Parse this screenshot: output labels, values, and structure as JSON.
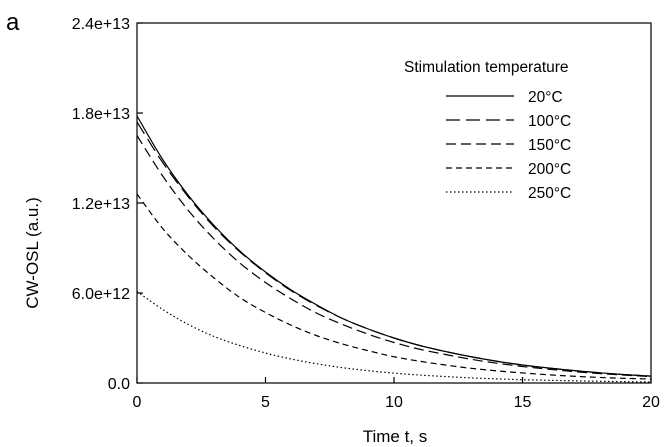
{
  "chart_data": {
    "type": "line",
    "panel_label": "a",
    "xlabel": "Time t, s",
    "ylabel": "CW-OSL (a.u.)",
    "xlim": [
      0,
      20
    ],
    "ylim": [
      0,
      24000000000000.0
    ],
    "x_ticks": [
      0,
      5,
      10,
      15,
      20
    ],
    "x_tick_labels": [
      "0",
      "5",
      "10",
      "15",
      "20"
    ],
    "y_ticks": [
      0,
      6000000000000.0,
      12000000000000.0,
      18000000000000.0,
      24000000000000.0
    ],
    "y_tick_labels": [
      "0.0",
      "6.0e+12",
      "1.2e+13",
      "1.8e+13",
      "2.4e+13"
    ],
    "grid": false,
    "legend": {
      "title": "Stimulation temperature",
      "position": "top-right"
    },
    "x": [
      0,
      1,
      2,
      3,
      4,
      5,
      6,
      7,
      8,
      9,
      10,
      11,
      12,
      13,
      14,
      15,
      16,
      17,
      18,
      19,
      20
    ],
    "series": [
      {
        "name": "20°C",
        "dash": "solid",
        "values": [
          17800000000000.0,
          14900000000000.0,
          12500000000000.0,
          10500000000000.0,
          8800000000000.0,
          7400000000000.0,
          6200000000000.0,
          5200000000000.0,
          4300000000000.0,
          3600000000000.0,
          3000000000000.0,
          2500000000000.0,
          2100000000000.0,
          1750000000000.0,
          1450000000000.0,
          1200000000000.0,
          1000000000000.0,
          830000000000.0,
          680000000000.0,
          560000000000.0,
          460000000000.0
        ]
      },
      {
        "name": "100°C",
        "dash": "long",
        "values": [
          17400000000000.0,
          14700000000000.0,
          12400000000000.0,
          10400000000000.0,
          8750000000000.0,
          7350000000000.0,
          6150000000000.0,
          5150000000000.0,
          4300000000000.0,
          3600000000000.0,
          3000000000000.0,
          2500000000000.0,
          2100000000000.0,
          1750000000000.0,
          1450000000000.0,
          1200000000000.0,
          1000000000000.0,
          830000000000.0,
          680000000000.0,
          560000000000.0,
          460000000000.0
        ]
      },
      {
        "name": "150°C",
        "dash": "medium",
        "values": [
          16500000000000.0,
          13800000000000.0,
          11500000000000.0,
          9600000000000.0,
          8000000000000.0,
          6700000000000.0,
          5600000000000.0,
          4650000000000.0,
          3900000000000.0,
          3250000000000.0,
          2700000000000.0,
          2250000000000.0,
          1900000000000.0,
          1580000000000.0,
          1320000000000.0,
          1100000000000.0,
          920000000000.0,
          760000000000.0,
          630000000000.0,
          520000000000.0,
          430000000000.0
        ]
      },
      {
        "name": "200°C",
        "dash": "short",
        "values": [
          12600000000000.0,
          10300000000000.0,
          8500000000000.0,
          7000000000000.0,
          5700000000000.0,
          4700000000000.0,
          3850000000000.0,
          3150000000000.0,
          2600000000000.0,
          2150000000000.0,
          1750000000000.0,
          1450000000000.0,
          1200000000000.0,
          980000000000.0,
          810000000000.0,
          670000000000.0,
          550000000000.0,
          450000000000.0,
          370000000000.0,
          310000000000.0,
          260000000000.0
        ]
      },
      {
        "name": "250°C",
        "dash": "dotted",
        "values": [
          6100000000000.0,
          4900000000000.0,
          3900000000000.0,
          3100000000000.0,
          2500000000000.0,
          2000000000000.0,
          1600000000000.0,
          1280000000000.0,
          1020000000000.0,
          820000000000.0,
          660000000000.0,
          530000000000.0,
          430000000000.0,
          340000000000.0,
          275000000000.0,
          220000000000.0,
          180000000000.0,
          145000000000.0,
          115000000000.0,
          90000000000.0,
          70000000000.0
        ]
      }
    ]
  }
}
